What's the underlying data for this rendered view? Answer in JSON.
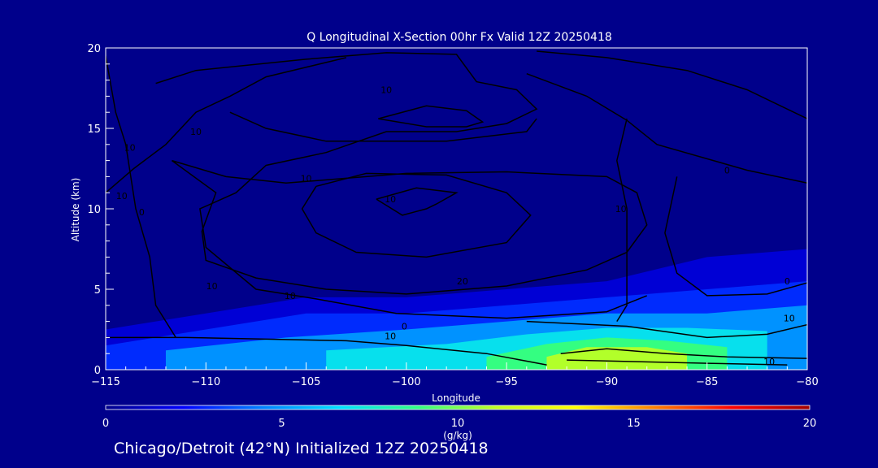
{
  "chart_data": {
    "type": "heatmap",
    "title": "Q Longitudinal X-Section 00hr  Fx Valid 12Z 20250418",
    "xlabel": "Longitude",
    "ylabel": "Altitude (km)",
    "xlim": [
      -115,
      -80
    ],
    "ylim": [
      0,
      20
    ],
    "x_ticks": [
      "−115",
      "−110",
      "−105",
      "−100",
      "−95",
      "−90",
      "−85",
      "−80"
    ],
    "x_tick_values": [
      -115,
      -110,
      -105,
      -100,
      -95,
      -90,
      -85,
      -80
    ],
    "y_ticks": [
      "0",
      "5",
      "10",
      "15",
      "20"
    ],
    "y_tick_values": [
      0,
      5,
      10,
      15,
      20
    ],
    "colorbar": {
      "label": "(g/kg)",
      "range": [
        0,
        20
      ],
      "ticks": [
        "0",
        "5",
        "10",
        "15",
        "20"
      ],
      "tick_values": [
        0,
        5,
        10,
        15,
        20
      ],
      "colormap": [
        "#00008b",
        "#0000ff",
        "#0080ff",
        "#00e0ff",
        "#30ff80",
        "#c0ff20",
        "#ffff00",
        "#ff8000",
        "#ff0000",
        "#a00000"
      ]
    },
    "moisture_field": [
      {
        "x": [
          -115,
          -110,
          -105,
          -100,
          -95,
          -90,
          -85,
          -80
        ],
        "y_top": [
          2.5,
          3.5,
          4.5,
          4.5,
          5.0,
          5.5,
          7.0,
          7.5
        ],
        "q": 1.5
      },
      {
        "x": [
          -115,
          -110,
          -105,
          -100,
          -95,
          -90,
          -85,
          -80
        ],
        "y_top": [
          1.5,
          2.5,
          3.5,
          3.5,
          4.0,
          4.5,
          5.0,
          5.5
        ],
        "q": 3
      },
      {
        "x": [
          -112,
          -106,
          -100,
          -95,
          -90,
          -85,
          -80
        ],
        "y_top": [
          1.2,
          2.0,
          2.5,
          3.0,
          3.5,
          3.5,
          4.0
        ],
        "q": 5
      },
      {
        "x": [
          -104,
          -98,
          -94,
          -90,
          -86,
          -82
        ],
        "y_top": [
          1.2,
          1.6,
          2.2,
          2.6,
          2.6,
          2.4
        ],
        "q": 7
      },
      {
        "x": [
          -96,
          -93,
          -90,
          -87,
          -84
        ],
        "y_top": [
          0.8,
          1.6,
          2.0,
          1.8,
          1.4
        ],
        "q": 9
      },
      {
        "x": [
          -93,
          -91,
          -88,
          -86
        ],
        "y_top": [
          0.8,
          1.4,
          1.4,
          1.0
        ],
        "q": 11
      }
    ],
    "contour_labels": [
      "10",
      "10",
      "10",
      "10",
      "10",
      "20",
      "10",
      "10",
      "0",
      "10",
      "0",
      "10",
      "0",
      "10",
      "10",
      "0",
      "10"
    ],
    "contour_label_positions": [
      {
        "x": -101,
        "y": 17.2
      },
      {
        "x": -110.5,
        "y": 14.6
      },
      {
        "x": -113.8,
        "y": 13.6
      },
      {
        "x": -105,
        "y": 11.7
      },
      {
        "x": -100.8,
        "y": 10.4
      },
      {
        "x": -97.2,
        "y": 5.3
      },
      {
        "x": -109.7,
        "y": 5.0
      },
      {
        "x": -105.8,
        "y": 4.4
      },
      {
        "x": -100.1,
        "y": 2.5
      },
      {
        "x": -100.8,
        "y": 1.9
      },
      {
        "x": -84,
        "y": 12.2
      },
      {
        "x": -89.3,
        "y": 9.8
      },
      {
        "x": -81,
        "y": 5.3
      },
      {
        "x": -80.9,
        "y": 3.0
      },
      {
        "x": -114.2,
        "y": 10.6
      },
      {
        "x": -113.2,
        "y": 9.6
      },
      {
        "x": -81.9,
        "y": 0.3
      }
    ]
  },
  "footer": {
    "text": "Chicago/Detroit (42°N) Initialized 12Z 20250418"
  }
}
